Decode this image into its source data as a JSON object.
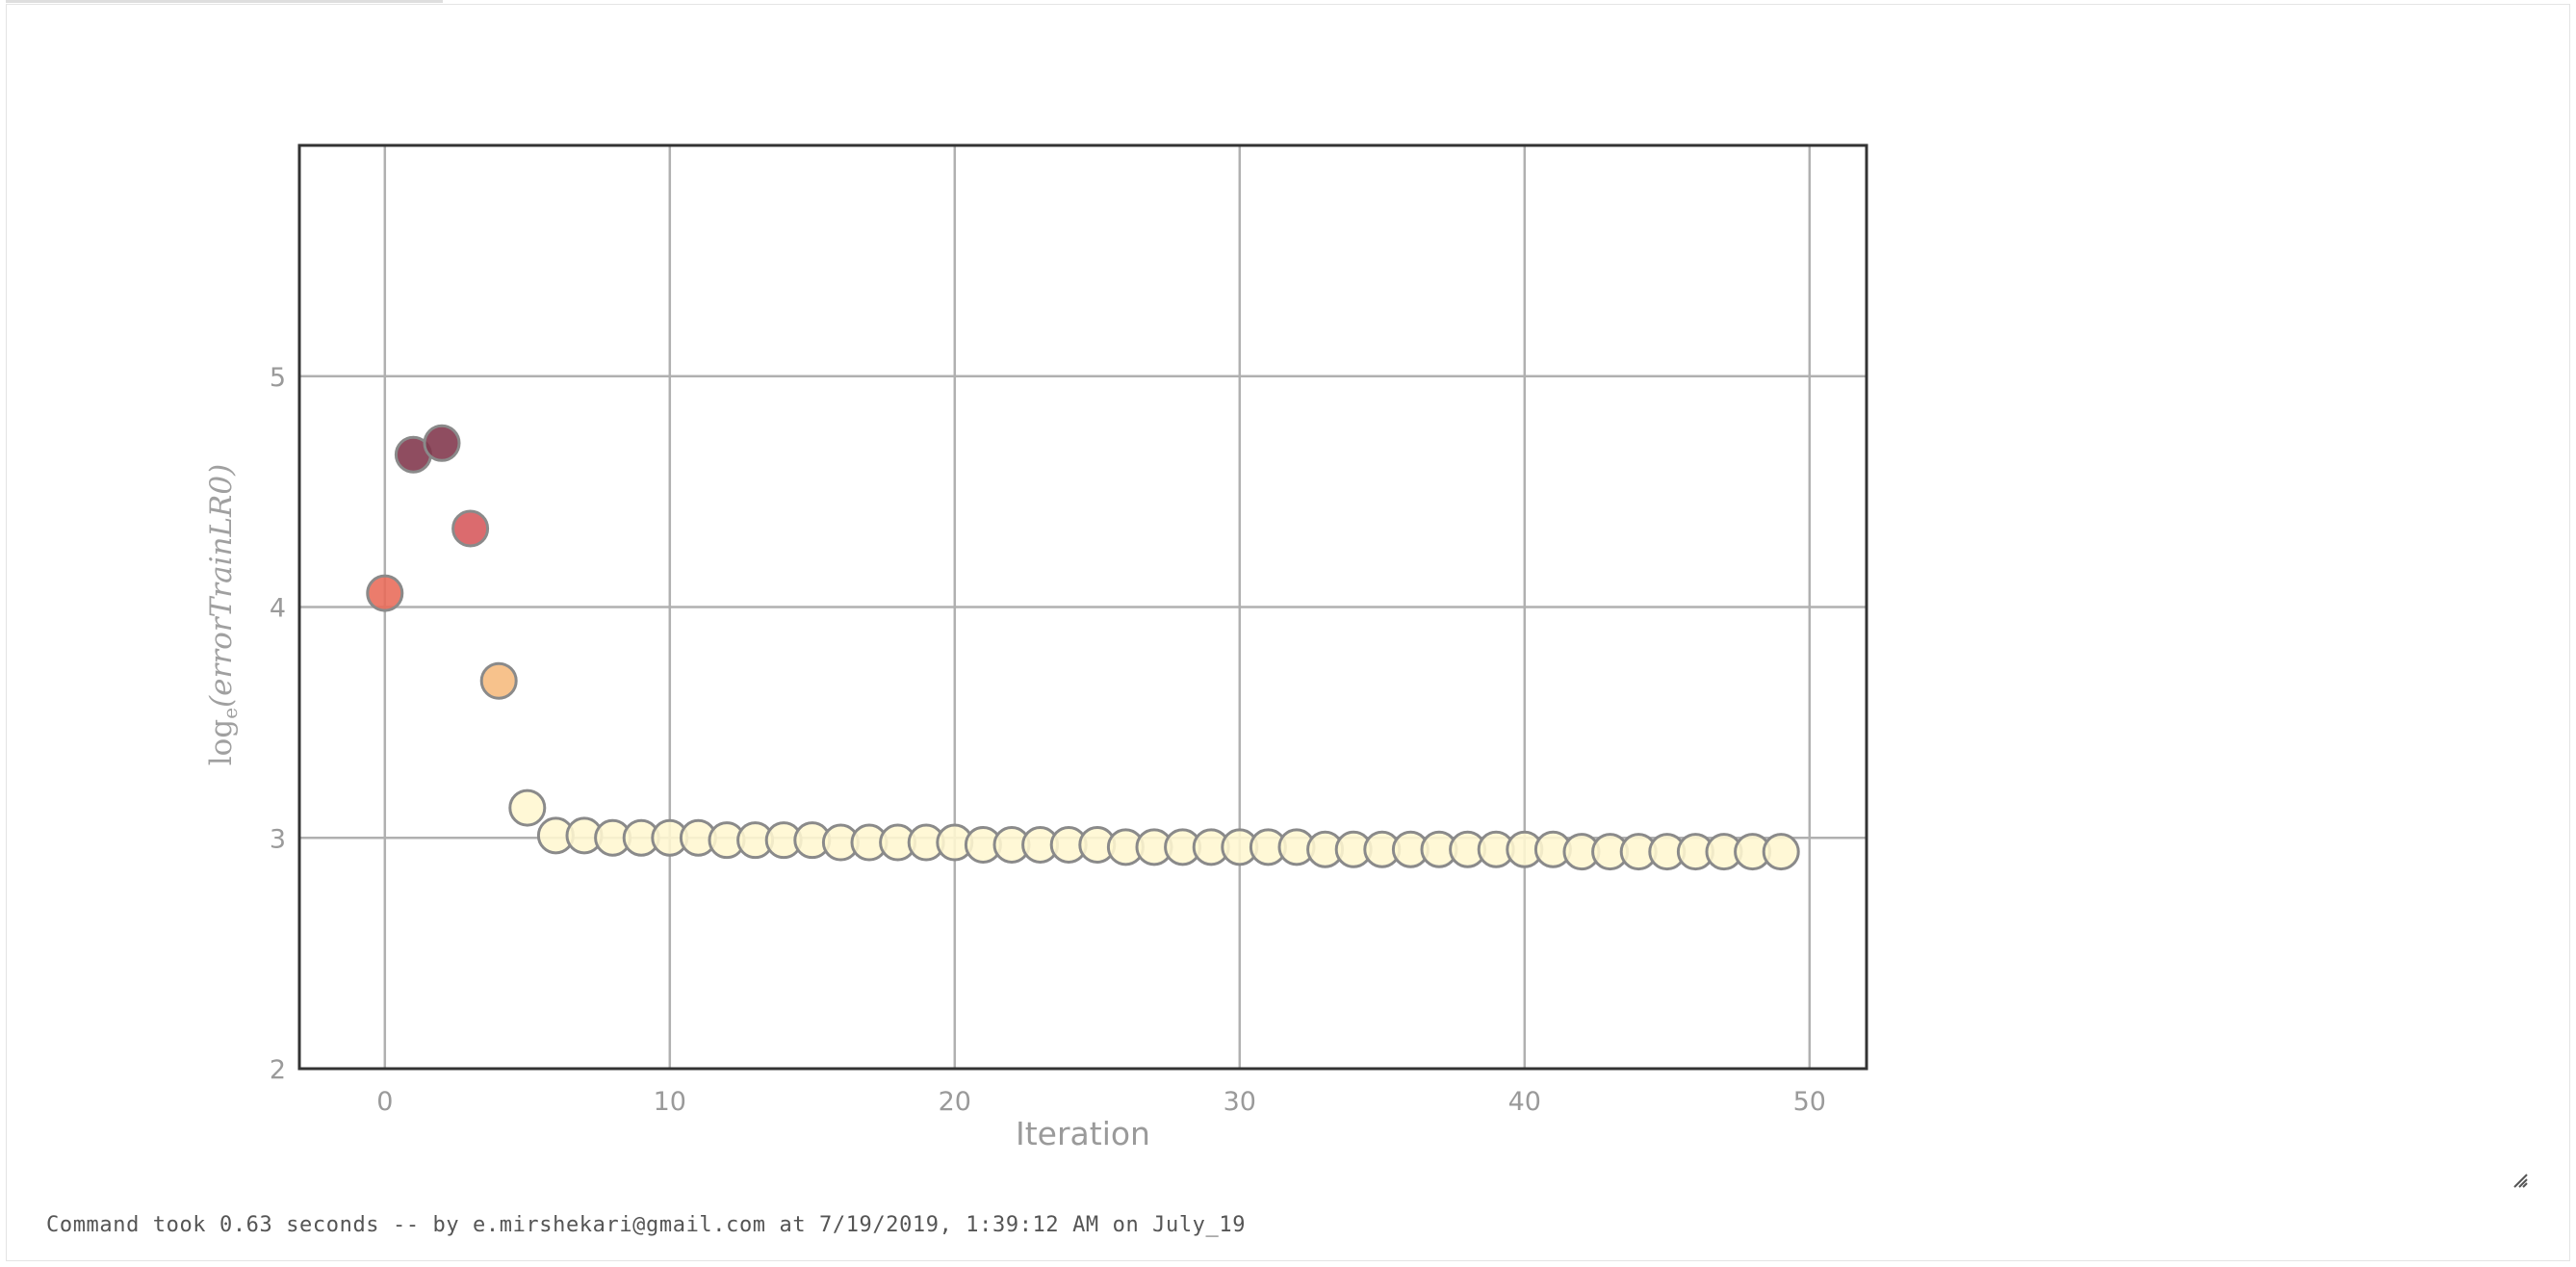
{
  "status": {
    "text": "Command took 0.63 seconds -- by e.mirshekari@gmail.com at 7/19/2019, 1:39:12 AM on July_19"
  },
  "chart_data": {
    "type": "scatter",
    "xlabel": "Iteration",
    "ylabel": "log_e(errorTrainLR0)",
    "ylabel_parts": {
      "log": "log",
      "base": "e",
      "arg": "(errorTrainLR0)"
    },
    "xlim": [
      -3,
      52
    ],
    "ylim": [
      2,
      6
    ],
    "xticks": [
      0,
      10,
      20,
      30,
      40,
      50
    ],
    "yticks": [
      2,
      3,
      4,
      5
    ],
    "grid": true,
    "colormap": "YlOrRd",
    "marker_edge_color": "#8a8a8a",
    "series": [
      {
        "x": [
          0,
          1,
          2,
          3,
          4,
          5,
          6,
          7,
          8,
          9,
          10,
          11,
          12,
          13,
          14,
          15,
          16,
          17,
          18,
          19,
          20,
          21,
          22,
          23,
          24,
          25,
          26,
          27,
          28,
          29,
          30,
          31,
          32,
          33,
          34,
          35,
          36,
          37,
          38,
          39,
          40,
          41,
          42,
          43,
          44,
          45,
          46,
          47,
          48,
          49
        ],
        "y": [
          4.06,
          4.66,
          4.71,
          4.34,
          3.68,
          3.13,
          3.01,
          3.01,
          3.0,
          3.0,
          3.0,
          3.0,
          2.99,
          2.99,
          2.99,
          2.99,
          2.98,
          2.98,
          2.98,
          2.98,
          2.98,
          2.97,
          2.97,
          2.97,
          2.97,
          2.97,
          2.96,
          2.96,
          2.96,
          2.96,
          2.96,
          2.96,
          2.96,
          2.95,
          2.95,
          2.95,
          2.95,
          2.95,
          2.95,
          2.95,
          2.95,
          2.95,
          2.94,
          2.94,
          2.94,
          2.94,
          2.94,
          2.94,
          2.94,
          2.94
        ],
        "colors": [
          "#e86a58",
          "#80344a",
          "#80344a",
          "#d6565a",
          "#f6b97c",
          "#fff7d0",
          "#fff7d0",
          "#fff7d0",
          "#fff7d0",
          "#fff7d0",
          "#fff7d0",
          "#fff7d0",
          "#fff7d0",
          "#fff7d0",
          "#fff7d0",
          "#fff7d0",
          "#fff7d0",
          "#fff7d0",
          "#fff7d0",
          "#fff7d0",
          "#fff7d0",
          "#fff7d0",
          "#fff7d0",
          "#fff7d0",
          "#fff7d0",
          "#fff7d0",
          "#fff7d0",
          "#fff7d0",
          "#fff7d0",
          "#fff7d0",
          "#fff7d0",
          "#fff7d0",
          "#fff7d0",
          "#fff7d0",
          "#fff7d0",
          "#fff7d0",
          "#fff7d0",
          "#fff7d0",
          "#fff7d0",
          "#fff7d0",
          "#fff7d0",
          "#fff7d0",
          "#fff7d0",
          "#fff7d0",
          "#fff7d0",
          "#fff7d0",
          "#fff7d0",
          "#fff7d0",
          "#fff7d0",
          "#fff7d0"
        ]
      }
    ]
  }
}
